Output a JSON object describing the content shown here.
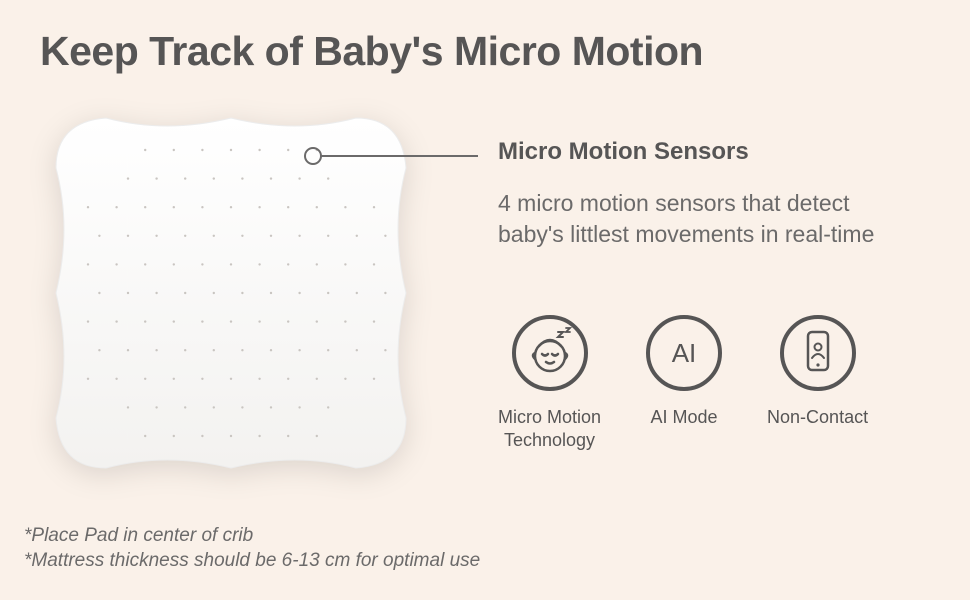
{
  "title": "Keep Track of Baby's Micro Motion",
  "callout": {
    "heading": "Micro Motion Sensors",
    "body": "4 micro motion sensors that detect baby's littlest movements in real-time"
  },
  "features": [
    {
      "label": "Micro Motion\nTechnology",
      "icon": "baby-sleep-icon"
    },
    {
      "label": "AI Mode",
      "icon": "ai-icon"
    },
    {
      "label": "Non-Contact",
      "icon": "phone-icon"
    }
  ],
  "footnotes": [
    "*Place Pad in center of crib",
    "*Mattress thickness should be 6-13 cm for optimal use"
  ],
  "colors": {
    "background": "#faf1e9",
    "heading": "#565555",
    "body": "#6b6a6a",
    "icon_stroke": "#565555",
    "pad_fill": "#fdfdfd",
    "pad_dot": "#c9c5c1"
  },
  "typography": {
    "title_size": 41,
    "subheading_size": 24,
    "body_size": 23,
    "feature_label_size": 18,
    "footnote_size": 19
  },
  "pad": {
    "dot_grid": 11,
    "dot_radius": 1.2
  }
}
